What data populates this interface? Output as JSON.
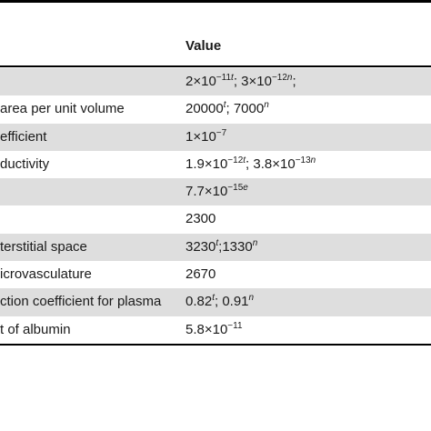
{
  "header": {
    "value_label": "Value"
  },
  "rows": [
    {
      "param": "",
      "value": [
        {
          "t": "2×10"
        },
        {
          "s": "−11"
        },
        {
          "si": "t"
        },
        {
          "t": "; 3×10"
        },
        {
          "s": "−12"
        },
        {
          "si": "n"
        },
        {
          "t": ";"
        }
      ]
    },
    {
      "param": "area per unit volume",
      "value": [
        {
          "t": "20000"
        },
        {
          "si": "t"
        },
        {
          "t": "; 7000"
        },
        {
          "si": "n"
        }
      ]
    },
    {
      "param": "efficient",
      "value": [
        {
          "t": "1×10"
        },
        {
          "s": "−7"
        }
      ]
    },
    {
      "param": "ductivity",
      "value": [
        {
          "t": "1.9×10"
        },
        {
          "s": "−12"
        },
        {
          "si": "t"
        },
        {
          "t": "; 3.8×10"
        },
        {
          "s": "−13"
        },
        {
          "si": "n"
        }
      ]
    },
    {
      "param": "",
      "value": [
        {
          "t": "7.7×10"
        },
        {
          "s": "−15"
        },
        {
          "si": "e"
        }
      ]
    },
    {
      "param": "",
      "value": [
        {
          "t": "2300"
        }
      ]
    },
    {
      "param": "terstitial space",
      "value": [
        {
          "t": "3230"
        },
        {
          "si": "t"
        },
        {
          "t": ";1330"
        },
        {
          "si": "n"
        }
      ]
    },
    {
      "param": "icrovasculature",
      "value": [
        {
          "t": "2670"
        }
      ]
    },
    {
      "param": "ction coefficient for plasma",
      "value": [
        {
          "t": "0.82"
        },
        {
          "si": "t"
        },
        {
          "t": "; 0.91"
        },
        {
          "si": "n"
        }
      ]
    },
    {
      "param": "t of albumin",
      "value": [
        {
          "t": "5.8×10"
        },
        {
          "s": "−11"
        }
      ]
    }
  ]
}
